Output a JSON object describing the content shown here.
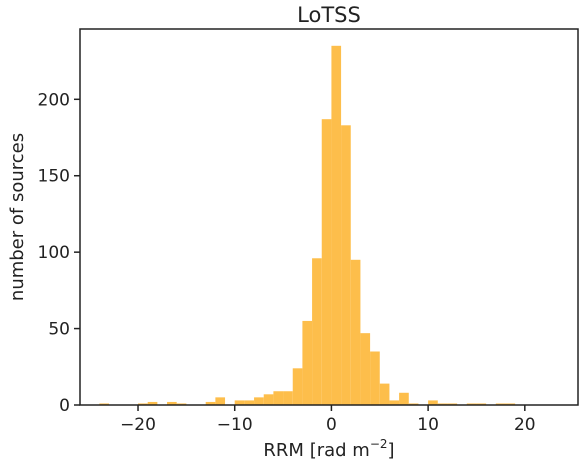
{
  "chart_data": {
    "type": "bar",
    "title": "LoTSS",
    "xlabel": "RRM [rad m",
    "xlabel_sup": "−2",
    "xlabel_end": "]",
    "ylabel": "number of sources",
    "xlim": [
      -26,
      25.5
    ],
    "ylim": [
      0,
      246
    ],
    "xticks": [
      -20,
      -10,
      0,
      10,
      20
    ],
    "xtick_labels": [
      "−20",
      "−10",
      "0",
      "10",
      "20"
    ],
    "yticks": [
      0,
      50,
      100,
      150,
      200
    ],
    "ytick_labels": [
      "0",
      "50",
      "100",
      "150",
      "200"
    ],
    "bin_width": 1,
    "bin_starts": [
      -24,
      -23,
      -22,
      -21,
      -20,
      -19,
      -18,
      -17,
      -16,
      -15,
      -14,
      -13,
      -12,
      -11,
      -10,
      -9,
      -8,
      -7,
      -6,
      -5,
      -4,
      -3,
      -2,
      -1,
      0,
      1,
      2,
      3,
      4,
      5,
      6,
      7,
      8,
      9,
      10,
      11,
      12,
      13,
      14,
      15,
      16,
      17,
      18,
      19,
      20,
      21,
      22
    ],
    "counts": [
      1,
      0,
      0,
      0,
      1,
      2,
      0,
      2,
      1,
      0,
      0,
      2,
      5,
      0,
      3,
      3,
      5,
      7,
      9,
      9,
      24,
      55,
      96,
      187,
      235,
      183,
      95,
      47,
      35,
      14,
      3,
      8,
      1,
      0,
      3,
      1,
      1,
      0,
      1,
      1,
      0,
      1,
      1,
      0,
      0,
      0,
      0
    ],
    "bar_color": "#fdbe4b",
    "grid": false
  }
}
